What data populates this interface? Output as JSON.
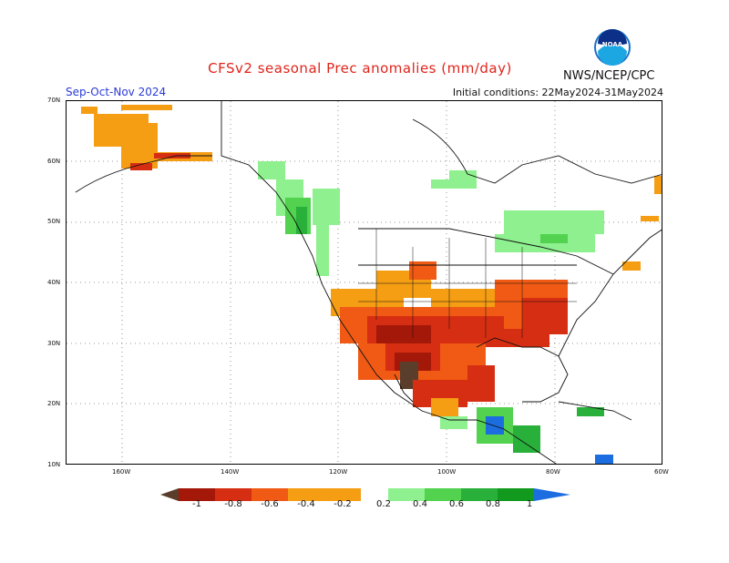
{
  "title": "CFSv2 seasonal Prec anomalies (mm/day)",
  "season": "Sep-Oct-Nov 2024",
  "initial_conditions": "Initial conditions: 22May2024-31May2024",
  "agency": "NWS/NCEP/CPC",
  "logo_text": "NOAA",
  "lat_labels": [
    "70N",
    "60N",
    "50N",
    "40N",
    "30N",
    "20N",
    "10N"
  ],
  "lon_labels": [
    "160W",
    "140W",
    "120W",
    "100W",
    "80W",
    "60W"
  ],
  "colorbar": {
    "labels": [
      "-1",
      "-0.8",
      "-0.6",
      "-0.4",
      "-0.2",
      "0.2",
      "0.4",
      "0.6",
      "0.8",
      "1"
    ],
    "colors": [
      "#5a3e2b",
      "#a31808",
      "#d62e12",
      "#f05a14",
      "#f59d13",
      "#ffffff",
      "#8ef08e",
      "#52d24f",
      "#28b03a",
      "#129a1f",
      "#1c6ee0"
    ]
  },
  "colors": {
    "title": "#e0241b",
    "season": "#2a3bd6",
    "dry_strong": "#5a3e2b",
    "dry_high": "#a31808",
    "dry_mid": "#d62e12",
    "dry_low": "#f05a14",
    "dry_light": "#f59d13",
    "wet_light": "#8ef08e",
    "wet_mid": "#52d24f",
    "wet_high": "#28b03a",
    "wet_strong": "#129a1f",
    "wet_max": "#1c6ee0"
  }
}
